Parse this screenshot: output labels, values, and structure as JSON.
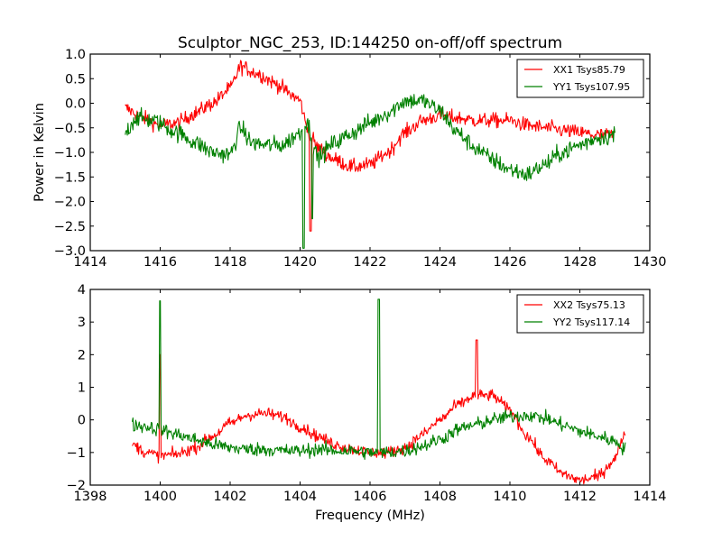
{
  "chart_data": [
    {
      "type": "line",
      "title": "Sculptor_NGC_253, ID:144250 on-off/off spectrum",
      "xlabel": "",
      "ylabel": "Power in Kelvin",
      "xlim": [
        1414,
        1430
      ],
      "ylim": [
        -3.0,
        1.0
      ],
      "xticks": [
        "1414",
        "1416",
        "1418",
        "1420",
        "1422",
        "1424",
        "1426",
        "1428",
        "1430"
      ],
      "yticks": [
        "1.0",
        "0.5",
        "0.0",
        "−0.5",
        "−1.0",
        "−1.5",
        "−2.0",
        "−2.5",
        "−3.0"
      ],
      "grid": false,
      "legend_position": "top-right",
      "series": [
        {
          "name": "XX1 Tsys85.79",
          "color": "#ff0000",
          "noise": 0.1,
          "x": [
            1415.0,
            1415.5,
            1416.0,
            1416.5,
            1417.0,
            1417.5,
            1418.0,
            1418.3,
            1418.8,
            1419.3,
            1419.8,
            1420.0,
            1420.2,
            1420.5,
            1421.0,
            1421.5,
            1422.0,
            1422.5,
            1423.0,
            1423.5,
            1424.0,
            1424.5,
            1425.0,
            1425.5,
            1426.0,
            1426.5,
            1427.0,
            1427.5,
            1428.0,
            1428.5,
            1429.0
          ],
          "y": [
            -0.1,
            -0.3,
            -0.45,
            -0.4,
            -0.2,
            0.0,
            0.3,
            0.75,
            0.6,
            0.4,
            0.15,
            0.05,
            -0.5,
            -0.9,
            -1.15,
            -1.3,
            -1.25,
            -1.0,
            -0.6,
            -0.35,
            -0.25,
            -0.3,
            -0.35,
            -0.35,
            -0.35,
            -0.45,
            -0.5,
            -0.55,
            -0.6,
            -0.65,
            -0.65
          ],
          "spikes": [
            {
              "x": 1420.3,
              "y": -2.6
            }
          ]
        },
        {
          "name": "YY1 Tsys107.95",
          "color": "#008000",
          "noise": 0.12,
          "x": [
            1415.0,
            1415.3,
            1415.8,
            1416.5,
            1417.0,
            1417.5,
            1418.0,
            1418.3,
            1418.6,
            1419.0,
            1419.5,
            1420.0,
            1420.2,
            1420.5,
            1421.0,
            1421.5,
            1422.0,
            1422.5,
            1423.0,
            1423.5,
            1424.0,
            1424.5,
            1425.0,
            1425.5,
            1426.0,
            1426.5,
            1427.0,
            1427.5,
            1428.0,
            1428.5,
            1429.0
          ],
          "y": [
            -0.6,
            -0.3,
            -0.35,
            -0.6,
            -0.8,
            -1.0,
            -1.05,
            -0.5,
            -0.8,
            -0.85,
            -0.85,
            -0.6,
            -0.4,
            -1.1,
            -0.8,
            -0.6,
            -0.4,
            -0.2,
            0.05,
            0.05,
            -0.15,
            -0.6,
            -0.9,
            -1.15,
            -1.35,
            -1.45,
            -1.25,
            -1.0,
            -0.85,
            -0.7,
            -0.65
          ],
          "spikes": [
            {
              "x": 1420.1,
              "y": -2.95
            },
            {
              "x": 1420.35,
              "y": -2.35
            }
          ]
        }
      ]
    },
    {
      "type": "line",
      "title": "",
      "xlabel": "Frequency (MHz)",
      "ylabel": "",
      "xlim": [
        1398,
        1414
      ],
      "ylim": [
        -2,
        4
      ],
      "xticks": [
        "1398",
        "1400",
        "1402",
        "1404",
        "1406",
        "1408",
        "1410",
        "1412",
        "1414"
      ],
      "yticks": [
        "4",
        "3",
        "2",
        "1",
        "0",
        "−1",
        "−2"
      ],
      "grid": false,
      "legend_position": "top-right",
      "series": [
        {
          "name": "XX2 Tsys75.13",
          "color": "#ff0000",
          "noise": 0.12,
          "x": [
            1399.2,
            1399.6,
            1400.0,
            1400.5,
            1401.0,
            1401.5,
            1402.0,
            1402.5,
            1403.0,
            1403.5,
            1404.0,
            1404.5,
            1405.0,
            1405.5,
            1406.0,
            1406.5,
            1407.0,
            1407.5,
            1408.0,
            1408.5,
            1409.0,
            1409.5,
            1410.0,
            1410.5,
            1411.0,
            1411.5,
            1412.0,
            1412.5,
            1413.0,
            1413.3
          ],
          "y": [
            -0.75,
            -1.0,
            -1.1,
            -1.05,
            -0.85,
            -0.5,
            -0.1,
            0.15,
            0.2,
            0.1,
            -0.2,
            -0.5,
            -0.75,
            -0.9,
            -1.0,
            -1.0,
            -0.85,
            -0.45,
            0.0,
            0.45,
            0.75,
            0.75,
            0.3,
            -0.5,
            -1.2,
            -1.65,
            -1.85,
            -1.75,
            -1.2,
            -0.35
          ],
          "spikes": [
            {
              "x": 1400.0,
              "y": 2.0
            },
            {
              "x": 1409.05,
              "y": 2.45
            }
          ]
        },
        {
          "name": "YY2 Tsys117.14",
          "color": "#008000",
          "noise": 0.14,
          "x": [
            1399.2,
            1399.6,
            1400.0,
            1400.5,
            1401.0,
            1401.5,
            1402.0,
            1402.5,
            1403.0,
            1403.5,
            1404.0,
            1404.5,
            1405.0,
            1405.5,
            1406.0,
            1406.5,
            1407.0,
            1407.5,
            1408.0,
            1408.5,
            1409.0,
            1409.5,
            1410.0,
            1410.5,
            1411.0,
            1411.5,
            1412.0,
            1412.5,
            1413.0,
            1413.3
          ],
          "y": [
            -0.15,
            -0.2,
            -0.3,
            -0.45,
            -0.6,
            -0.75,
            -0.85,
            -0.9,
            -0.9,
            -0.95,
            -0.95,
            -0.9,
            -0.95,
            -0.95,
            -1.0,
            -1.0,
            -0.95,
            -0.8,
            -0.6,
            -0.3,
            -0.15,
            0.0,
            0.1,
            0.15,
            0.05,
            -0.15,
            -0.35,
            -0.5,
            -0.65,
            -0.9
          ],
          "spikes": [
            {
              "x": 1400.0,
              "y": 3.65
            },
            {
              "x": 1406.25,
              "y": 3.7
            }
          ]
        }
      ]
    }
  ]
}
